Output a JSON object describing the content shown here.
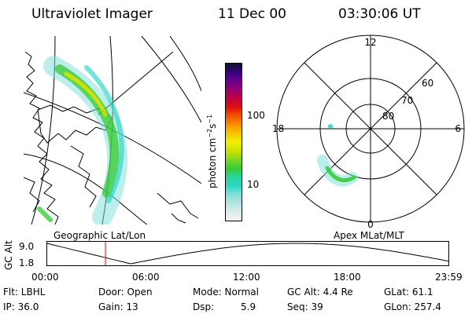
{
  "header": {
    "title": "Ultraviolet Imager",
    "date": "11 Dec 00",
    "time": "03:30:06 UT"
  },
  "colorbar": {
    "label_main": "photon cm",
    "label_exp1": "−2",
    "label_mid": "s",
    "label_exp2": "−1",
    "ticks": [
      "100",
      "10"
    ],
    "scale": "log",
    "colors": [
      "#f4f4f4",
      "#d8ecec",
      "#b6e2e2",
      "#7de0d8",
      "#2fd6c8",
      "#2ad39a",
      "#33cc33",
      "#80d820",
      "#c8e000",
      "#f0f000",
      "#f8c000",
      "#f89000",
      "#f05000",
      "#e01010",
      "#c00040",
      "#9c0070",
      "#6a0090",
      "#3a0080",
      "#101030"
    ]
  },
  "geo_panel": {
    "label": "Geographic Lat/Lon"
  },
  "polar_panel": {
    "label": "Apex MLat/MLT",
    "mlt_labels": {
      "top": "12",
      "right": "6",
      "bottom": "0",
      "left": "18"
    },
    "lat_labels": [
      "60",
      "70",
      "80"
    ]
  },
  "timeline": {
    "ylabel": "GC Alt",
    "ymax": "9.0",
    "ymin": "1.8",
    "xticks": [
      "00:00",
      "06:00",
      "12:00",
      "18:00",
      "23:59"
    ],
    "marker_time_hours": 3.5,
    "marker_color": "#e00000"
  },
  "footer": {
    "flt": "Flt: LBHL",
    "door": "Door: Open",
    "mode": "Mode: Normal",
    "gcalt": "GC Alt: 4.4 Re",
    "glat": "GLat:  61.1",
    "ip": "IP: 36.0",
    "gain": "Gain: 13",
    "dsp": "Dsp:",
    "dsp_val": "5.9",
    "seq": "Seq: 39",
    "glon": "GLon: 257.4"
  }
}
